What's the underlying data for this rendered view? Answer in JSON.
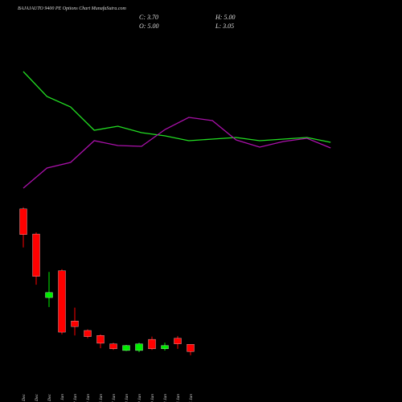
{
  "chart_data": [
    {
      "type": "line",
      "title": "BAJAJAUTO 9400 PE Options Chart MunafaSutra.com",
      "header": [
        "C: 3.70",
        "H: 5.00",
        "O: 5.00",
        "L: 3.05"
      ],
      "ylim": [
        0,
        100
      ],
      "series": [
        {
          "name": "green line",
          "color": "#22dd22",
          "values": [
            80.5,
            65,
            58.5,
            44,
            46.5,
            42.5,
            40.5,
            37.5,
            38.5,
            39.5,
            37.5,
            38.5,
            39.5,
            36.5
          ]
        },
        {
          "name": "purple line",
          "color": "#aa11aa",
          "values": [
            8,
            20.5,
            24,
            37.5,
            34.5,
            34,
            44.5,
            52,
            50,
            38,
            33.5,
            37,
            39,
            33
          ]
        }
      ]
    },
    {
      "type": "candlestick",
      "categories": [
        "29 Dec",
        "30 Dec",
        "31 Dec",
        "01 Jan",
        "02 Jan",
        "03 Jan",
        "06 Jan",
        "07 Jan",
        "08 Jan",
        "09 Jan",
        "10 Jan",
        "13 Jan",
        "14 Jan",
        "15 Jan"
      ],
      "open": [
        29.3,
        24.8,
        13.4,
        18.2,
        9.2,
        7.5,
        6.6,
        5.1,
        3.9,
        3.9,
        5.9,
        4.2,
        6.1,
        5.0
      ],
      "high": [
        29.6,
        25.1,
        18.0,
        18.5,
        11.6,
        7.7,
        6.8,
        5.3,
        4.9,
        5.3,
        6.4,
        5.3,
        6.5,
        5.0
      ],
      "low": [
        22.4,
        15.7,
        11.7,
        6.8,
        6.6,
        6.1,
        4.3,
        4.0,
        3.8,
        3.6,
        4.0,
        3.9,
        4.2,
        3.05
      ],
      "close": [
        24.7,
        17.2,
        14.3,
        7.2,
        8.2,
        6.4,
        5.2,
        4.2,
        4.8,
        5.1,
        4.2,
        4.8,
        5.1,
        3.7
      ],
      "ylim": [
        0,
        30
      ],
      "up_color": "#00ee00",
      "down_color": "#ff0000"
    }
  ]
}
